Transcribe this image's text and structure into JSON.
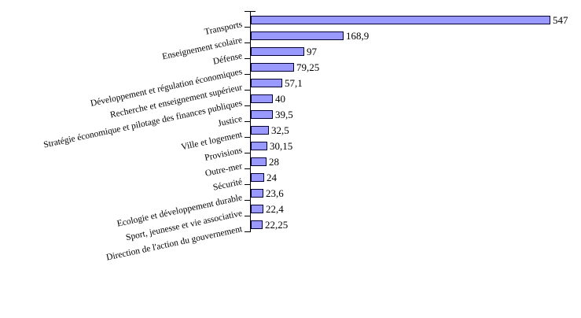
{
  "chart_data": {
    "type": "bar",
    "orientation": "horizontal",
    "title": "",
    "xlabel": "",
    "ylabel": "",
    "legend": null,
    "grid": false,
    "xlim": [
      0,
      600
    ],
    "categories": [
      "Transports",
      "Enseignement scolaire",
      "Défense",
      "Développement et régulation économiques",
      "Recherche et enseignement supérieur",
      "Stratégie économique et pilotage des finances publiques",
      "Justice",
      "Ville et logement",
      "Provisions",
      "Outre-mer",
      "Sécurité",
      "Ecologie et développement durable",
      "Sport, jeunesse et vie associative",
      "Direction de l'action du gouvernement"
    ],
    "values": [
      547,
      168.9,
      97,
      79.25,
      57.1,
      40,
      39.5,
      32.5,
      30.15,
      28,
      24,
      23.6,
      22.4,
      22.25
    ],
    "value_labels": [
      "547",
      "168,9",
      "97",
      "79,25",
      "57,1",
      "40",
      "39,5",
      "32,5",
      "30,15",
      "28",
      "24",
      "23,6",
      "22,4",
      "22,25"
    ],
    "colors": {
      "bar_fill": "#9999FF",
      "bar_border": "#000033",
      "axis": "#000000",
      "text": "#000000",
      "background": "#FFFFFF"
    }
  }
}
